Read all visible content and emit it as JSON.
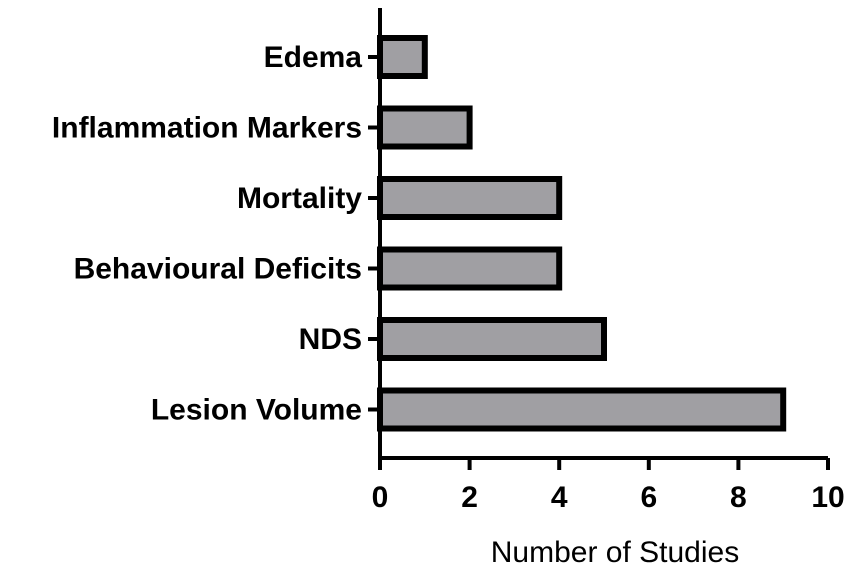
{
  "chart_data": {
    "type": "bar",
    "orientation": "horizontal",
    "categories": [
      "Edema",
      "Inflammation Markers",
      "Mortality",
      "Behavioural Deficits",
      "NDS",
      "Lesion Volume"
    ],
    "values": [
      1,
      2,
      4,
      4,
      5,
      9
    ],
    "xlabel": "Number of Studies",
    "ylabel": "",
    "xlim": [
      0,
      10
    ],
    "xticks": [
      "0",
      "2",
      "4",
      "6",
      "8",
      "10"
    ],
    "grid": false,
    "bar_color": "#a09fa3",
    "bar_outline_color": "#000000"
  }
}
